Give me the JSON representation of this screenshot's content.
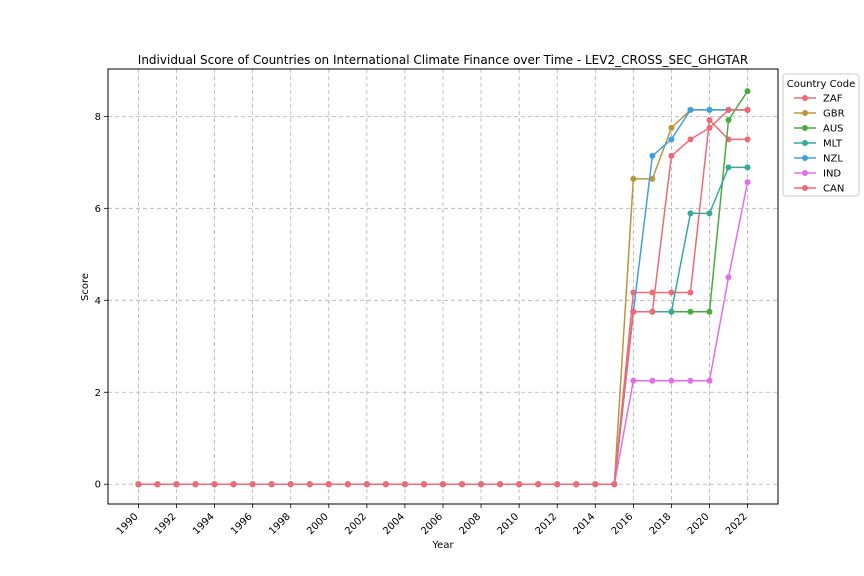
{
  "chart_data": {
    "type": "line",
    "title": "Individual Score of Countries on International Climate Finance over Time - LEV2_CROSS_SEC_GHGTAR",
    "xlabel": "Year",
    "ylabel": "Score",
    "xlim": [
      1988.4,
      2023.6
    ],
    "ylim": [
      -0.43,
      9.03
    ],
    "x_ticks": [
      1990,
      1992,
      1994,
      1996,
      1998,
      2000,
      2002,
      2004,
      2006,
      2008,
      2010,
      2012,
      2014,
      2016,
      2018,
      2020,
      2022
    ],
    "y_ticks": [
      0,
      2,
      4,
      6,
      8
    ],
    "grid": true,
    "legend": {
      "title": "Country Code",
      "placement": "upper right, outside plot"
    },
    "x": [
      1990,
      1991,
      1992,
      1993,
      1994,
      1995,
      1996,
      1997,
      1998,
      1999,
      2000,
      2001,
      2002,
      2003,
      2004,
      2005,
      2006,
      2007,
      2008,
      2009,
      2010,
      2011,
      2012,
      2013,
      2014,
      2015,
      2016,
      2017,
      2018,
      2019,
      2020,
      2021,
      2022
    ],
    "series": [
      {
        "name": "ZAF",
        "color": "#ef6a75",
        "values": [
          0,
          0,
          0,
          0,
          0,
          0,
          0,
          0,
          0,
          0,
          0,
          0,
          0,
          0,
          0,
          0,
          0,
          0,
          0,
          0,
          0,
          0,
          0,
          0,
          0,
          0,
          4.17,
          4.17,
          4.17,
          4.17,
          7.92,
          7.5,
          7.5
        ]
      },
      {
        "name": "GBR",
        "color": "#b8973a",
        "values": [
          0,
          0,
          0,
          0,
          0,
          0,
          0,
          0,
          0,
          0,
          0,
          0,
          0,
          0,
          0,
          0,
          0,
          0,
          0,
          0,
          0,
          0,
          0,
          0,
          0,
          0,
          6.64,
          6.64,
          7.75,
          8.14,
          8.14,
          8.14,
          8.14
        ]
      },
      {
        "name": "AUS",
        "color": "#4aab3d",
        "values": [
          0,
          0,
          0,
          0,
          0,
          0,
          0,
          0,
          0,
          0,
          0,
          0,
          0,
          0,
          0,
          0,
          0,
          0,
          0,
          0,
          0,
          0,
          0,
          0,
          0,
          0,
          3.75,
          3.75,
          3.75,
          3.75,
          3.75,
          7.92,
          8.55
        ]
      },
      {
        "name": "MLT",
        "color": "#36a99a",
        "values": [
          0,
          0,
          0,
          0,
          0,
          0,
          0,
          0,
          0,
          0,
          0,
          0,
          0,
          0,
          0,
          0,
          0,
          0,
          0,
          0,
          0,
          0,
          0,
          0,
          0,
          0,
          3.75,
          3.75,
          3.75,
          5.89,
          5.89,
          6.89,
          6.89
        ]
      },
      {
        "name": "NZL",
        "color": "#3ea0e4",
        "values": [
          0,
          0,
          0,
          0,
          0,
          0,
          0,
          0,
          0,
          0,
          0,
          0,
          0,
          0,
          0,
          0,
          0,
          0,
          0,
          0,
          0,
          0,
          0,
          0,
          0,
          0,
          3.75,
          7.14,
          7.5,
          8.14,
          8.14,
          8.14,
          8.14
        ]
      },
      {
        "name": "IND",
        "color": "#e26ee8",
        "values": [
          0,
          0,
          0,
          0,
          0,
          0,
          0,
          0,
          0,
          0,
          0,
          0,
          0,
          0,
          0,
          0,
          0,
          0,
          0,
          0,
          0,
          0,
          0,
          0,
          0,
          0,
          2.25,
          2.25,
          2.25,
          2.25,
          2.25,
          4.5,
          6.57
        ]
      },
      {
        "name": "CAN",
        "color": "#ef6a75",
        "values": [
          0,
          0,
          0,
          0,
          0,
          0,
          0,
          0,
          0,
          0,
          0,
          0,
          0,
          0,
          0,
          0,
          0,
          0,
          0,
          0,
          0,
          0,
          0,
          0,
          0,
          0,
          3.75,
          3.75,
          7.14,
          7.5,
          7.75,
          8.14,
          8.14
        ]
      }
    ]
  }
}
